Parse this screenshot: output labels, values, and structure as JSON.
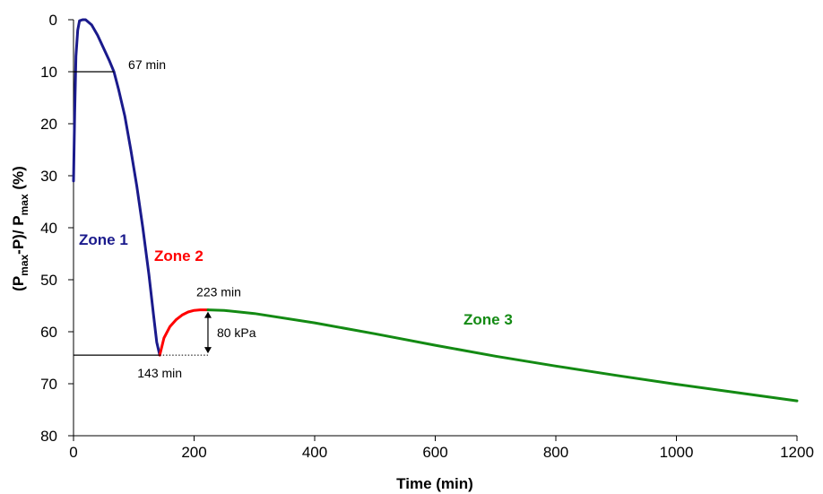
{
  "chart_data": {
    "type": "line",
    "xlabel": "Time (min)",
    "ylabel": "(P<sub>max</sub>-P)/ P<sub>max</sub> (%)",
    "ylabel_parts": [
      "(P",
      "max",
      "-P)/ P",
      "max",
      " (%)"
    ],
    "xlim": [
      0,
      1200
    ],
    "ylim": [
      0,
      80
    ],
    "y_inverted": true,
    "grid": false,
    "x_ticks": [
      0,
      200,
      400,
      600,
      800,
      1000,
      1200
    ],
    "y_ticks": [
      0,
      10,
      20,
      30,
      40,
      50,
      60,
      70,
      80
    ],
    "series": [
      {
        "name": "Zone 1",
        "color": "#1a1a8c",
        "x": [
          0,
          2,
          4,
          7,
          10,
          15,
          20,
          30,
          40,
          50,
          60,
          67,
          75,
          85,
          95,
          105,
          115,
          125,
          133,
          138,
          143
        ],
        "y": [
          31,
          18,
          7,
          2,
          0.2,
          0,
          0,
          1,
          3,
          5.5,
          8,
          10,
          13.5,
          18.5,
          25,
          32,
          40,
          49,
          57,
          62,
          64.5
        ]
      },
      {
        "name": "Zone 2",
        "color": "#ff0000",
        "x": [
          143,
          150,
          160,
          170,
          180,
          190,
          200,
          210,
          223
        ],
        "y": [
          64.5,
          61.2,
          59,
          57.7,
          56.8,
          56.2,
          55.9,
          55.8,
          55.8
        ]
      },
      {
        "name": "Zone 3",
        "color": "#138a13",
        "x": [
          223,
          250,
          300,
          400,
          500,
          600,
          700,
          800,
          900,
          1000,
          1100,
          1200
        ],
        "y": [
          55.8,
          55.9,
          56.5,
          58.3,
          60.4,
          62.6,
          64.7,
          66.6,
          68.4,
          70.1,
          71.7,
          73.3
        ]
      }
    ],
    "annotations": [
      {
        "text": "67 min",
        "x": 67,
        "y": 10
      },
      {
        "text": "143 min",
        "x": 143,
        "y": 64.5
      },
      {
        "text": "223 min",
        "x": 223,
        "y": 55.8
      },
      {
        "text": "80 kPa"
      }
    ]
  }
}
